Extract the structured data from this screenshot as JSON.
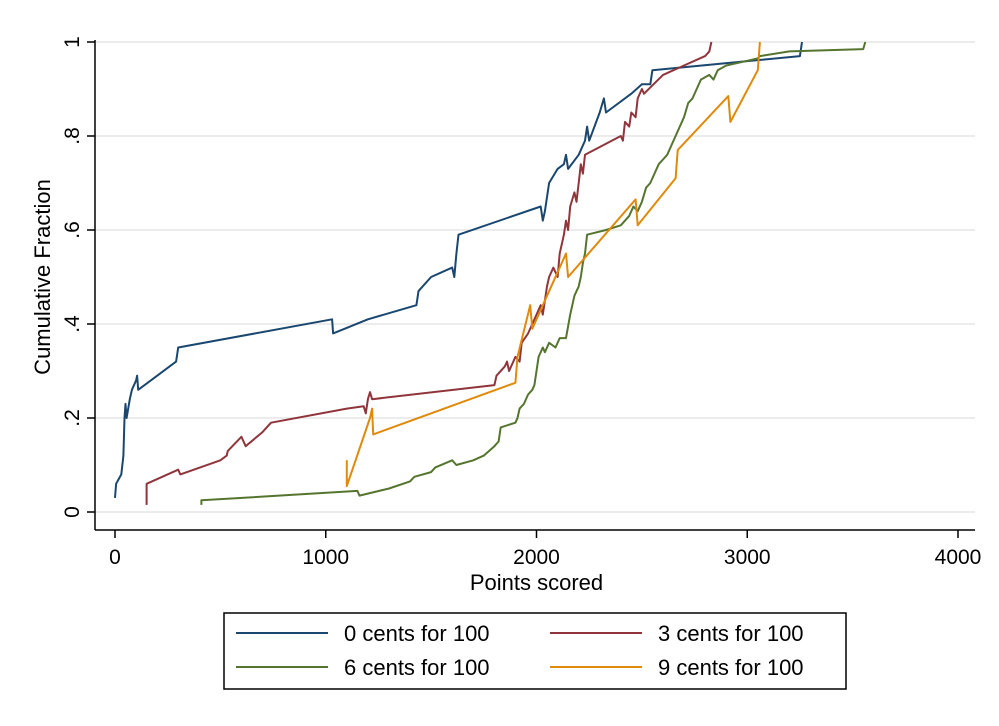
{
  "chart_data": {
    "type": "line",
    "title": "",
    "xlabel": "Points scored",
    "ylabel": "Cumulative Fraction",
    "xlim": [
      0,
      4000
    ],
    "ylim": [
      0,
      1
    ],
    "x_ticks": [
      0,
      1000,
      2000,
      3000,
      4000
    ],
    "x_tick_labels": [
      "0",
      "1000",
      "2000",
      "3000",
      "4000"
    ],
    "y_ticks": [
      0,
      0.2,
      0.4,
      0.6,
      0.8,
      1
    ],
    "y_tick_labels": [
      "0",
      ".2",
      ".4",
      ".6",
      ".8",
      "1"
    ],
    "grid": "horizontal",
    "legend_position": "bottom",
    "series": [
      {
        "name": "0 cents for 100",
        "color": "#1a476f",
        "points": [
          [
            0,
            0.03
          ],
          [
            5,
            0.06
          ],
          [
            30,
            0.08
          ],
          [
            40,
            0.12
          ],
          [
            45,
            0.2
          ],
          [
            50,
            0.23
          ],
          [
            55,
            0.2
          ],
          [
            70,
            0.24
          ],
          [
            80,
            0.26
          ],
          [
            100,
            0.28
          ],
          [
            105,
            0.29
          ],
          [
            110,
            0.26
          ],
          [
            200,
            0.29
          ],
          [
            290,
            0.32
          ],
          [
            300,
            0.35
          ],
          [
            1030,
            0.41
          ],
          [
            1035,
            0.38
          ],
          [
            1200,
            0.41
          ],
          [
            1430,
            0.44
          ],
          [
            1440,
            0.47
          ],
          [
            1500,
            0.5
          ],
          [
            1600,
            0.52
          ],
          [
            1610,
            0.5
          ],
          [
            1620,
            0.55
          ],
          [
            1630,
            0.59
          ],
          [
            2020,
            0.65
          ],
          [
            2030,
            0.62
          ],
          [
            2040,
            0.64
          ],
          [
            2050,
            0.67
          ],
          [
            2060,
            0.7
          ],
          [
            2100,
            0.73
          ],
          [
            2130,
            0.74
          ],
          [
            2140,
            0.76
          ],
          [
            2150,
            0.73
          ],
          [
            2200,
            0.76
          ],
          [
            2230,
            0.79
          ],
          [
            2240,
            0.82
          ],
          [
            2250,
            0.79
          ],
          [
            2300,
            0.85
          ],
          [
            2320,
            0.88
          ],
          [
            2330,
            0.85
          ],
          [
            2450,
            0.89
          ],
          [
            2500,
            0.91
          ],
          [
            2540,
            0.91
          ],
          [
            2550,
            0.94
          ],
          [
            3250,
            0.97
          ],
          [
            3260,
            1.0
          ]
        ]
      },
      {
        "name": "3 cents for 100",
        "color": "#90353b",
        "points": [
          [
            150,
            0.015
          ],
          [
            150,
            0.06
          ],
          [
            300,
            0.09
          ],
          [
            310,
            0.08
          ],
          [
            500,
            0.11
          ],
          [
            530,
            0.12
          ],
          [
            535,
            0.13
          ],
          [
            600,
            0.16
          ],
          [
            620,
            0.14
          ],
          [
            700,
            0.17
          ],
          [
            740,
            0.19
          ],
          [
            1100,
            0.22
          ],
          [
            1180,
            0.225
          ],
          [
            1190,
            0.21
          ],
          [
            1200,
            0.24
          ],
          [
            1210,
            0.255
          ],
          [
            1220,
            0.24
          ],
          [
            1800,
            0.27
          ],
          [
            1810,
            0.29
          ],
          [
            1850,
            0.31
          ],
          [
            1860,
            0.32
          ],
          [
            1870,
            0.3
          ],
          [
            1900,
            0.33
          ],
          [
            1920,
            0.32
          ],
          [
            1930,
            0.36
          ],
          [
            1960,
            0.38
          ],
          [
            2000,
            0.42
          ],
          [
            2020,
            0.44
          ],
          [
            2030,
            0.42
          ],
          [
            2040,
            0.45
          ],
          [
            2050,
            0.48
          ],
          [
            2060,
            0.5
          ],
          [
            2080,
            0.52
          ],
          [
            2100,
            0.5
          ],
          [
            2110,
            0.55
          ],
          [
            2130,
            0.59
          ],
          [
            2140,
            0.62
          ],
          [
            2150,
            0.6
          ],
          [
            2160,
            0.65
          ],
          [
            2180,
            0.68
          ],
          [
            2190,
            0.66
          ],
          [
            2200,
            0.7
          ],
          [
            2210,
            0.74
          ],
          [
            2220,
            0.72
          ],
          [
            2230,
            0.76
          ],
          [
            2400,
            0.8
          ],
          [
            2410,
            0.79
          ],
          [
            2420,
            0.83
          ],
          [
            2440,
            0.82
          ],
          [
            2450,
            0.85
          ],
          [
            2470,
            0.84
          ],
          [
            2480,
            0.88
          ],
          [
            2500,
            0.9
          ],
          [
            2510,
            0.89
          ],
          [
            2600,
            0.93
          ],
          [
            2700,
            0.95
          ],
          [
            2800,
            0.97
          ],
          [
            2820,
            0.98
          ],
          [
            2830,
            1.0
          ]
        ]
      },
      {
        "name": "6 cents for 100",
        "color": "#55752f",
        "points": [
          [
            410,
            0.015
          ],
          [
            410,
            0.025
          ],
          [
            1150,
            0.045
          ],
          [
            1160,
            0.035
          ],
          [
            1300,
            0.05
          ],
          [
            1400,
            0.065
          ],
          [
            1420,
            0.075
          ],
          [
            1500,
            0.085
          ],
          [
            1520,
            0.095
          ],
          [
            1600,
            0.11
          ],
          [
            1620,
            0.1
          ],
          [
            1700,
            0.11
          ],
          [
            1750,
            0.12
          ],
          [
            1800,
            0.14
          ],
          [
            1820,
            0.15
          ],
          [
            1830,
            0.18
          ],
          [
            1900,
            0.19
          ],
          [
            1910,
            0.2
          ],
          [
            1920,
            0.22
          ],
          [
            1940,
            0.23
          ],
          [
            1960,
            0.25
          ],
          [
            1980,
            0.26
          ],
          [
            1990,
            0.27
          ],
          [
            2000,
            0.3
          ],
          [
            2010,
            0.33
          ],
          [
            2030,
            0.35
          ],
          [
            2040,
            0.34
          ],
          [
            2060,
            0.36
          ],
          [
            2090,
            0.35
          ],
          [
            2110,
            0.37
          ],
          [
            2140,
            0.37
          ],
          [
            2160,
            0.42
          ],
          [
            2180,
            0.46
          ],
          [
            2200,
            0.48
          ],
          [
            2210,
            0.5
          ],
          [
            2220,
            0.53
          ],
          [
            2230,
            0.55
          ],
          [
            2240,
            0.59
          ],
          [
            2330,
            0.6
          ],
          [
            2400,
            0.61
          ],
          [
            2440,
            0.63
          ],
          [
            2460,
            0.65
          ],
          [
            2480,
            0.64
          ],
          [
            2500,
            0.66
          ],
          [
            2520,
            0.69
          ],
          [
            2540,
            0.7
          ],
          [
            2560,
            0.72
          ],
          [
            2580,
            0.74
          ],
          [
            2600,
            0.75
          ],
          [
            2620,
            0.76
          ],
          [
            2640,
            0.78
          ],
          [
            2660,
            0.8
          ],
          [
            2680,
            0.82
          ],
          [
            2700,
            0.84
          ],
          [
            2720,
            0.87
          ],
          [
            2740,
            0.88
          ],
          [
            2760,
            0.9
          ],
          [
            2780,
            0.92
          ],
          [
            2820,
            0.93
          ],
          [
            2840,
            0.92
          ],
          [
            2860,
            0.94
          ],
          [
            2900,
            0.95
          ],
          [
            3000,
            0.96
          ],
          [
            3050,
            0.965
          ],
          [
            3060,
            0.97
          ],
          [
            3200,
            0.98
          ],
          [
            3550,
            0.985
          ],
          [
            3560,
            1.0
          ]
        ]
      },
      {
        "name": "9 cents for 100",
        "color": "#e08a0b",
        "points": [
          [
            1100,
            0.11
          ],
          [
            1100,
            0.055
          ],
          [
            1210,
            0.2
          ],
          [
            1220,
            0.22
          ],
          [
            1225,
            0.165
          ],
          [
            1900,
            0.275
          ],
          [
            1910,
            0.33
          ],
          [
            1970,
            0.44
          ],
          [
            1980,
            0.39
          ],
          [
            2140,
            0.55
          ],
          [
            2150,
            0.5
          ],
          [
            2470,
            0.665
          ],
          [
            2480,
            0.61
          ],
          [
            2660,
            0.71
          ],
          [
            2670,
            0.77
          ],
          [
            2910,
            0.885
          ],
          [
            2920,
            0.83
          ],
          [
            3050,
            0.94
          ],
          [
            3060,
            1.0
          ]
        ]
      }
    ]
  }
}
